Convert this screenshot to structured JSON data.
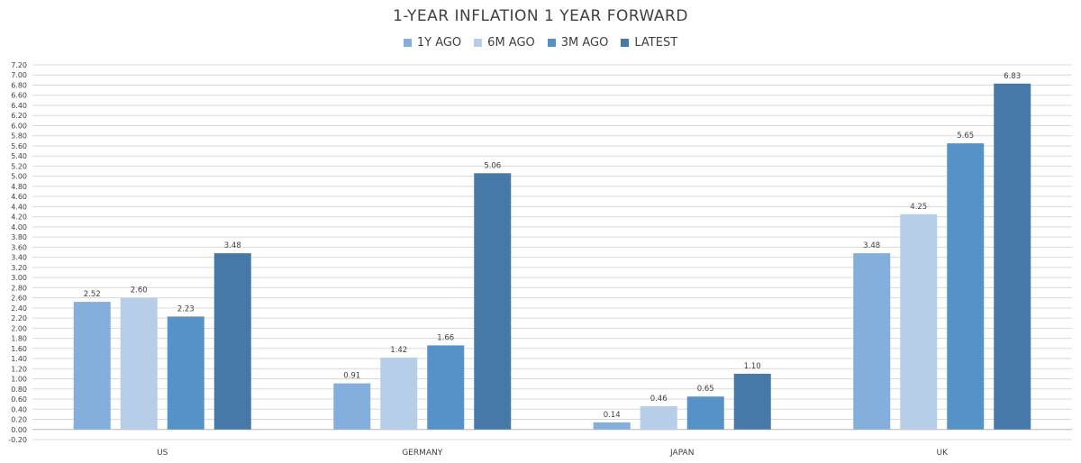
{
  "chart_data": {
    "type": "bar",
    "title": "1-YEAR INFLATION 1 YEAR FORWARD",
    "categories": [
      "US",
      "GERMANY",
      "JAPAN",
      "UK"
    ],
    "series": [
      {
        "name": "1Y AGO",
        "color": "#84AEDC",
        "values": [
          2.52,
          0.91,
          0.14,
          3.48
        ]
      },
      {
        "name": "6M AGO",
        "color": "#B7CEE9",
        "values": [
          2.6,
          1.42,
          0.46,
          4.25
        ]
      },
      {
        "name": "3M AGO",
        "color": "#5592C8",
        "values": [
          2.23,
          1.66,
          0.65,
          5.65
        ]
      },
      {
        "name": "LATEST",
        "color": "#4679A7",
        "values": [
          3.48,
          5.06,
          1.1,
          6.83
        ]
      }
    ],
    "ylim": [
      -0.2,
      7.2
    ],
    "ytick_step": 0.2,
    "grid": true,
    "legend_position": "top-center",
    "xlabel": "",
    "ylabel": ""
  }
}
